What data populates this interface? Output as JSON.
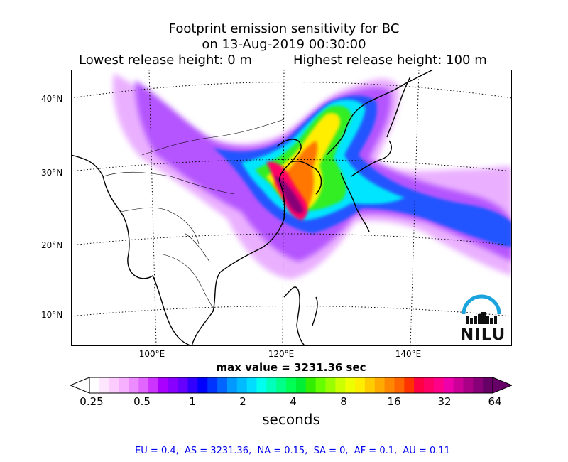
{
  "title": {
    "line1": "Footprint emission sensitivity for BC",
    "line2": "on 13-Aug-2019 00:30:00",
    "lowest": "Lowest release height: 0 m",
    "highest": "Highest release height: 100 m"
  },
  "map": {
    "lat_labels": [
      "40°N",
      "30°N",
      "20°N",
      "10°N"
    ],
    "lon_labels": [
      "100°E",
      "120°E",
      "140°E"
    ],
    "logo_text": "NILU",
    "colors": {
      "coast": "#000000",
      "grid": "#000000",
      "frame": "#000000"
    }
  },
  "max_value": "max value = 3231.36 sec",
  "colorbar": {
    "ticks": [
      "0.25",
      "0.5",
      "1",
      "2",
      "4",
      "8",
      "16",
      "32",
      "64"
    ],
    "label": "seconds",
    "colors": [
      "#ffffff",
      "#ffe6ff",
      "#fdccff",
      "#f6b0ff",
      "#ed8cff",
      "#e066ff",
      "#cc33ff",
      "#aa00ff",
      "#8800ff",
      "#6600ff",
      "#3300ff",
      "#0000ff",
      "#0033ff",
      "#0066ff",
      "#0099ff",
      "#00bbff",
      "#00ddff",
      "#00ffee",
      "#00ffbb",
      "#00ff88",
      "#00ff55",
      "#00ee33",
      "#33ee00",
      "#66ff00",
      "#99ff00",
      "#ccff00",
      "#eeff00",
      "#ffee00",
      "#ffcc00",
      "#ffaa00",
      "#ff8800",
      "#ff6600",
      "#ff3300",
      "#ff0044",
      "#ff0066",
      "#ff0088",
      "#ee00aa",
      "#cc0099",
      "#aa0088",
      "#880077",
      "#660066"
    ]
  },
  "footer": "EU = 0.4,  AS = 3231.36,  NA = 0.15,  SA = 0,  AF = 0.1,  AU = 0.11"
}
